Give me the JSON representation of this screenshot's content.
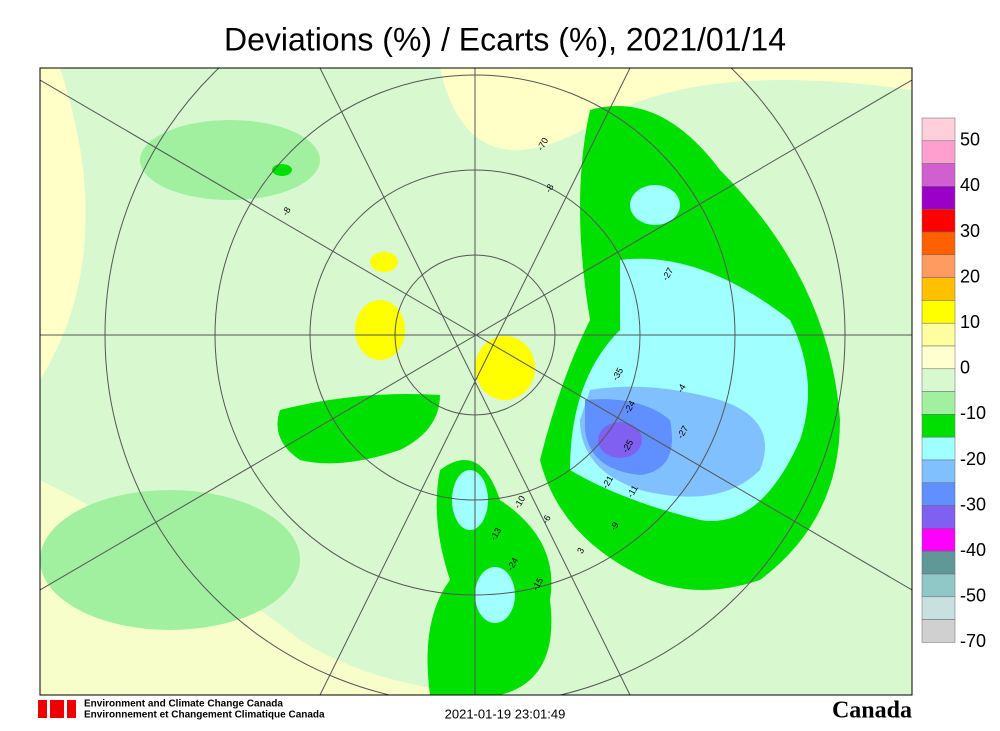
{
  "header": {
    "title": "Deviations (%) / Ecarts (%), 2021/01/14"
  },
  "legend": {
    "labels": [
      50,
      40,
      30,
      20,
      10,
      0,
      -10,
      -20,
      -30,
      -40,
      -50,
      -70
    ],
    "colors": [
      "#ffd0dc",
      "#ff9fd0",
      "#d060d0",
      "#9a00c8",
      "#ff0000",
      "#ff6000",
      "#ff9a60",
      "#ffc000",
      "#ffff00",
      "#ffffa0",
      "#ffffd0",
      "#d8f8d0",
      "#a0f0a0",
      "#00e000",
      "#a0ffff",
      "#80c0ff",
      "#6090ff",
      "#8060f0",
      "#ff00ff",
      "#609898",
      "#90c8c8",
      "#c8e0e0",
      "#d0d0d0"
    ]
  },
  "stations": [
    "-70",
    "-8",
    "-8",
    "-27",
    "-35",
    "-4",
    "-24",
    "-25",
    "-27",
    "-21",
    "-11",
    "-10",
    "-6",
    "-13",
    "-24",
    "-15",
    "3",
    "-9"
  ],
  "footer": {
    "agency_en": "Environment and Climate Change Canada",
    "agency_fr": "Environnement et Changement Climatique Canada",
    "timestamp": "2021-01-19 23:01:49",
    "wordmark": "Canada"
  }
}
